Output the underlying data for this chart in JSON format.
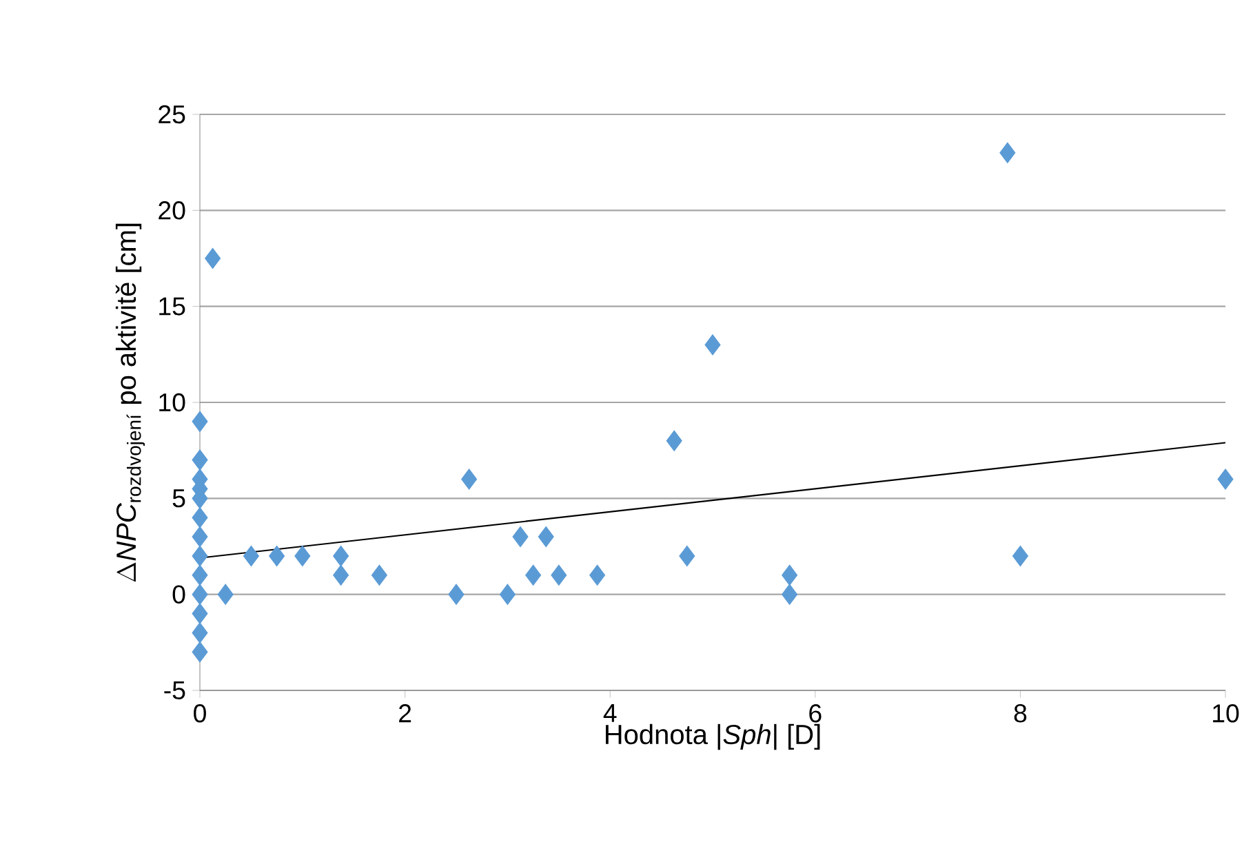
{
  "chart_data": {
    "type": "scatter",
    "xlabel": "Hodnota |*Sph*| [D]",
    "ylabel": "\\Delta \\mathit{NPC}_{\\text{rozdvojení}}\\text{ po aktivitě [cm]}",
    "xlim": [
      0,
      10
    ],
    "xticks": [
      0,
      2,
      4,
      6,
      8,
      10
    ],
    "ylim": [
      -5,
      25
    ],
    "yticks": [
      -5,
      0,
      5,
      10,
      15,
      20,
      25
    ],
    "grid": "y",
    "series": [
      {
        "color": "#5b9bd5",
        "marker": "diamond",
        "x": [
          0,
          0,
          0,
          0,
          0,
          0,
          0,
          0,
          0,
          0,
          0,
          0,
          0,
          0.125,
          0.25,
          0.5,
          0.75,
          1,
          1.375,
          1.375,
          1.75,
          2.5,
          2.625,
          3,
          3.125,
          3.25,
          3.375,
          3.5,
          3.875,
          4.625,
          4.75,
          5,
          5.75,
          5.75,
          7.875,
          8,
          10
        ],
        "values": [
          9,
          7,
          6,
          5.5,
          5,
          4,
          3,
          2,
          1,
          0,
          -1,
          -2,
          -3,
          17.5,
          0,
          2,
          2,
          2,
          2,
          1,
          1,
          0,
          6,
          0,
          3,
          1,
          3,
          1,
          1,
          8,
          2,
          13,
          1,
          0,
          23,
          2,
          6
        ]
      },
      {
        "type": "line",
        "color": "#000000",
        "marker": "none",
        "x": [
          0,
          10
        ],
        "values": [
          1.9,
          7.9
        ]
      }
    ]
  }
}
